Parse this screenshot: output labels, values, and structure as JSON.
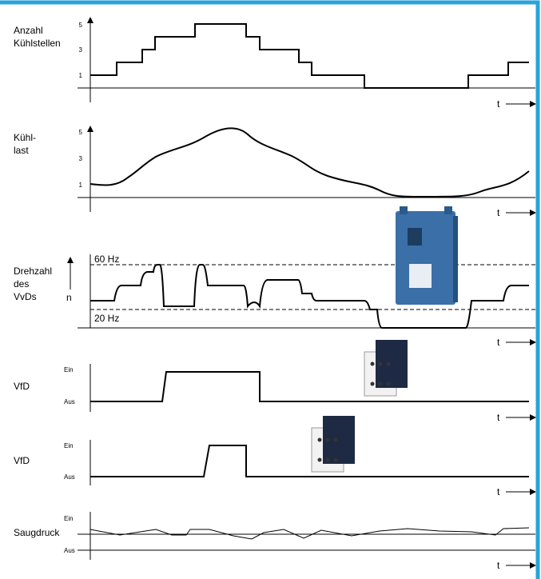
{
  "panels": [
    {
      "label": [
        "Anzahl",
        "Kühlstellen"
      ],
      "ticks": [
        "5",
        "3",
        "1"
      ],
      "axis": "t"
    },
    {
      "label": [
        "Kühl-",
        "last"
      ],
      "ticks": [
        "5",
        "3",
        "1"
      ],
      "axis": "t"
    },
    {
      "label": [
        "Drehzahl",
        "des",
        "VvDs"
      ],
      "unit": "n",
      "levels": [
        "60 Hz",
        "20 Hz"
      ],
      "axis": "t"
    },
    {
      "label": [
        "VfD"
      ],
      "states": [
        "Ein",
        "Aus"
      ],
      "axis": "t"
    },
    {
      "label": [
        "VfD"
      ],
      "states": [
        "Ein",
        "Aus"
      ],
      "axis": "t"
    },
    {
      "label": [
        "Saugdruck"
      ],
      "states": [
        "Ein",
        "Aus"
      ],
      "axis": "t"
    }
  ]
}
